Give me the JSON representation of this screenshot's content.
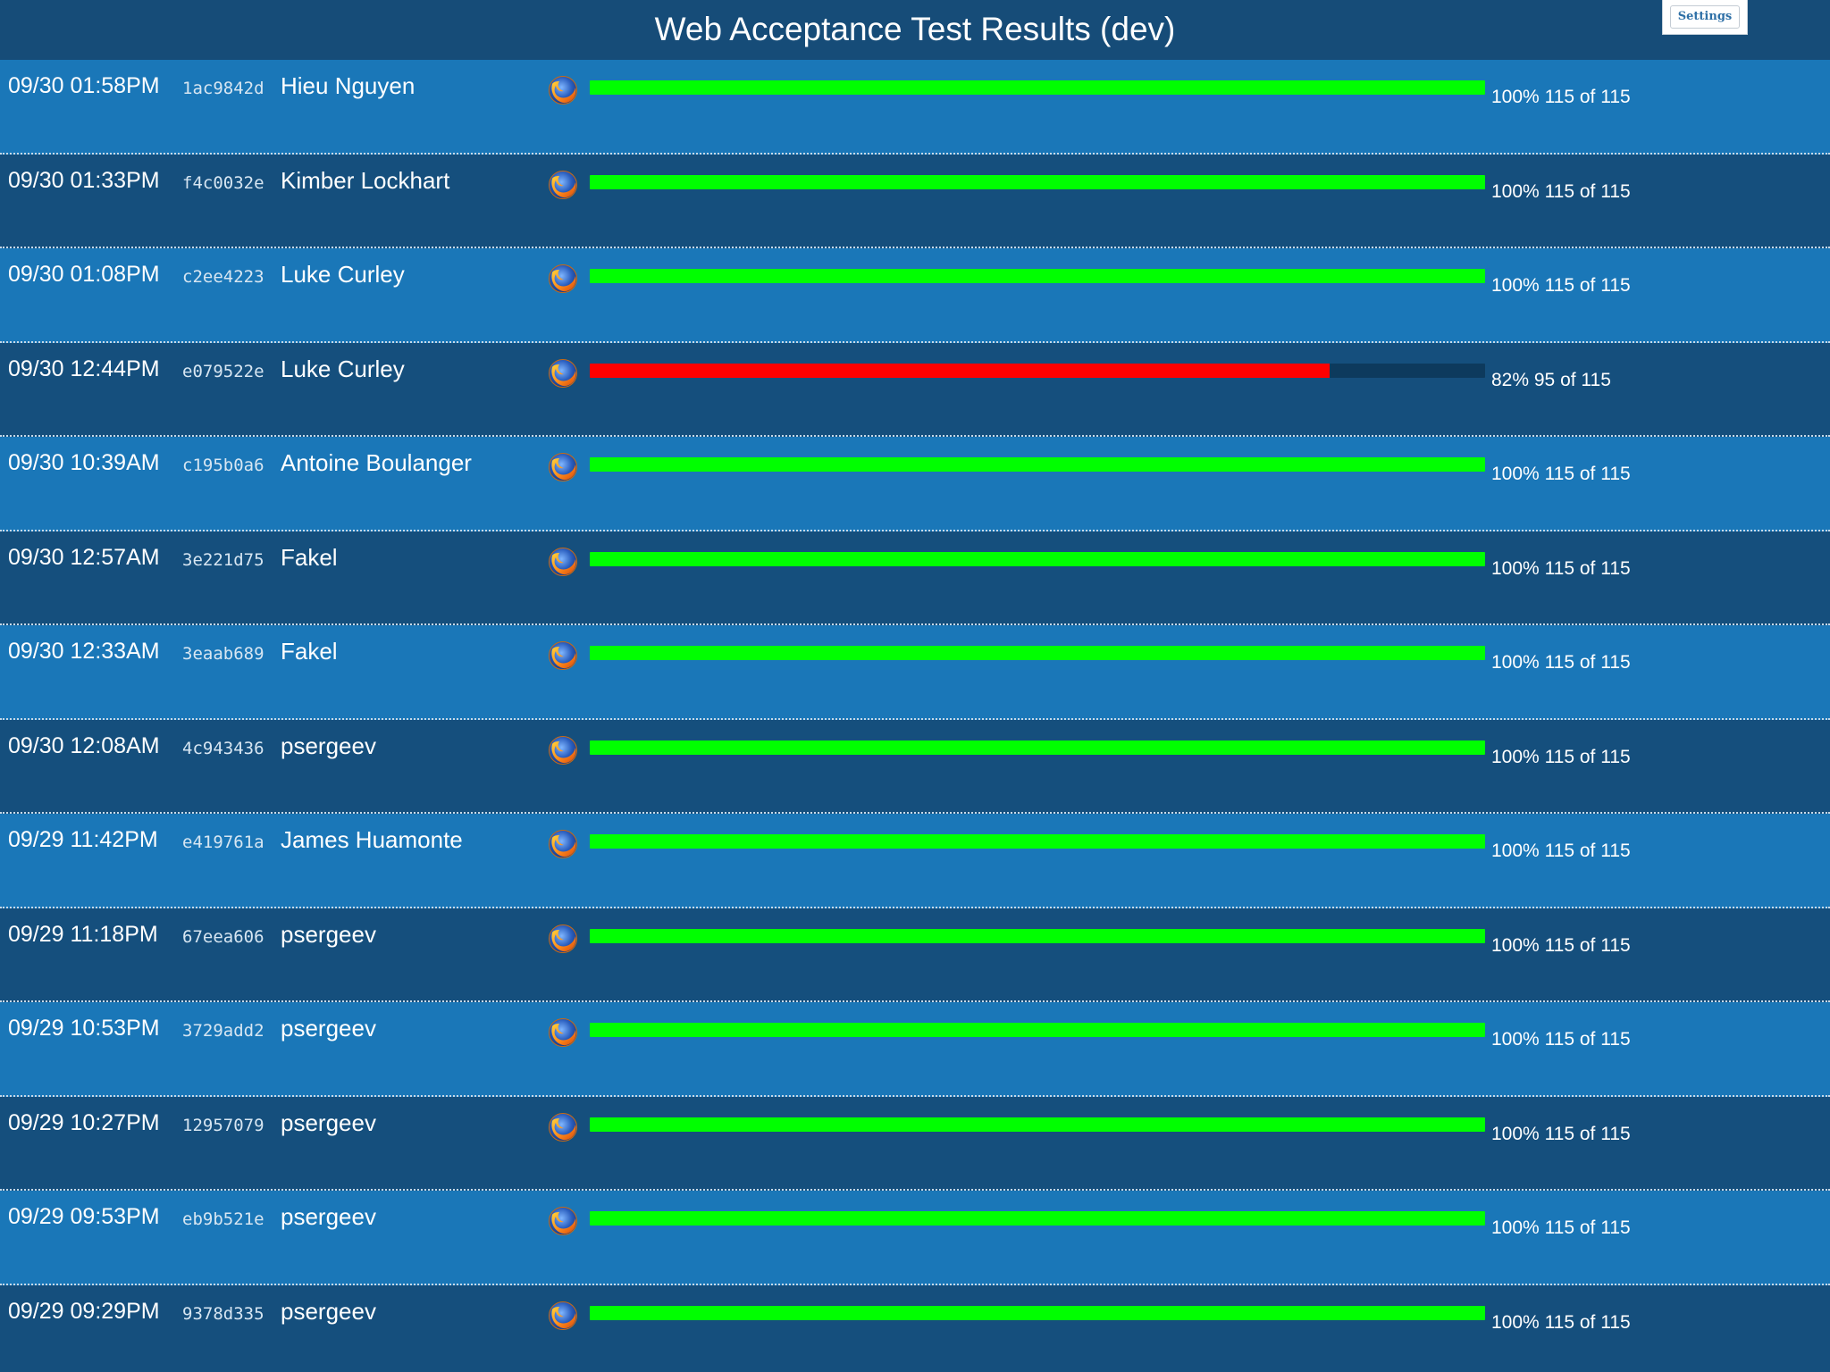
{
  "header": {
    "title": "Web Acceptance Test Results (dev)",
    "settings_label": "Settings"
  },
  "colors": {
    "row_light": "#1a77b8",
    "row_dark": "#154f7d",
    "pass": "#00ff00",
    "fail": "#ff0000",
    "track": "#0d3a5d"
  },
  "browser_icon": "firefox-icon",
  "runs": [
    {
      "time": "09/30 01:58PM",
      "hash": "1ac9842d",
      "author": "Hieu Nguyen",
      "percent_text": "100%",
      "count_text": "115 of 115",
      "passed": 115,
      "total": 115,
      "status": "pass"
    },
    {
      "time": "09/30 01:33PM",
      "hash": "f4c0032e",
      "author": "Kimber Lockhart",
      "percent_text": "100%",
      "count_text": "115 of 115",
      "passed": 115,
      "total": 115,
      "status": "pass"
    },
    {
      "time": "09/30 01:08PM",
      "hash": "c2ee4223",
      "author": "Luke Curley",
      "percent_text": "100%",
      "count_text": "115 of 115",
      "passed": 115,
      "total": 115,
      "status": "pass"
    },
    {
      "time": "09/30 12:44PM",
      "hash": "e079522e",
      "author": "Luke Curley",
      "percent_text": "82%",
      "count_text": "95 of 115",
      "passed": 95,
      "total": 115,
      "status": "fail"
    },
    {
      "time": "09/30 10:39AM",
      "hash": "c195b0a6",
      "author": "Antoine Boulanger",
      "percent_text": "100%",
      "count_text": "115 of 115",
      "passed": 115,
      "total": 115,
      "status": "pass"
    },
    {
      "time": "09/30 12:57AM",
      "hash": "3e221d75",
      "author": "Fakel",
      "percent_text": "100%",
      "count_text": "115 of 115",
      "passed": 115,
      "total": 115,
      "status": "pass"
    },
    {
      "time": "09/30 12:33AM",
      "hash": "3eaab689",
      "author": "Fakel",
      "percent_text": "100%",
      "count_text": "115 of 115",
      "passed": 115,
      "total": 115,
      "status": "pass"
    },
    {
      "time": "09/30 12:08AM",
      "hash": "4c943436",
      "author": "psergeev",
      "percent_text": "100%",
      "count_text": "115 of 115",
      "passed": 115,
      "total": 115,
      "status": "pass"
    },
    {
      "time": "09/29 11:42PM",
      "hash": "e419761a",
      "author": "James Huamonte",
      "percent_text": "100%",
      "count_text": "115 of 115",
      "passed": 115,
      "total": 115,
      "status": "pass"
    },
    {
      "time": "09/29 11:18PM",
      "hash": "67eea606",
      "author": "psergeev",
      "percent_text": "100%",
      "count_text": "115 of 115",
      "passed": 115,
      "total": 115,
      "status": "pass"
    },
    {
      "time": "09/29 10:53PM",
      "hash": "3729add2",
      "author": "psergeev",
      "percent_text": "100%",
      "count_text": "115 of 115",
      "passed": 115,
      "total": 115,
      "status": "pass"
    },
    {
      "time": "09/29 10:27PM",
      "hash": "12957079",
      "author": "psergeev",
      "percent_text": "100%",
      "count_text": "115 of 115",
      "passed": 115,
      "total": 115,
      "status": "pass"
    },
    {
      "time": "09/29 09:53PM",
      "hash": "eb9b521e",
      "author": "psergeev",
      "percent_text": "100%",
      "count_text": "115 of 115",
      "passed": 115,
      "total": 115,
      "status": "pass"
    },
    {
      "time": "09/29 09:29PM",
      "hash": "9378d335",
      "author": "psergeev",
      "percent_text": "100%",
      "count_text": "115 of 115",
      "passed": 115,
      "total": 115,
      "status": "pass"
    }
  ]
}
